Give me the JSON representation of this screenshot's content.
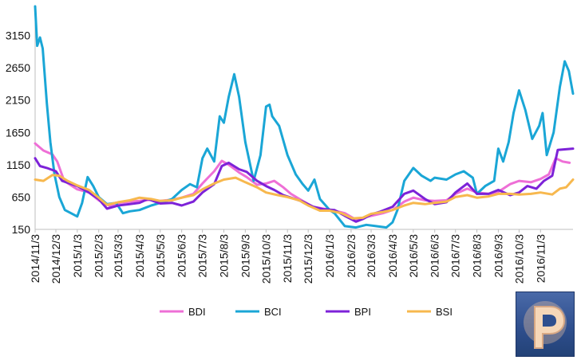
{
  "chart_data": {
    "type": "line",
    "title": "",
    "xlabel": "",
    "ylabel": "",
    "ylim": [
      150,
      3600
    ],
    "yticks": [
      150,
      650,
      1150,
      1650,
      2150,
      2650,
      3150
    ],
    "xlim": [
      "2014-11-03",
      "2016-12-20"
    ],
    "xticks": [
      "2014/11/3",
      "2014/12/3",
      "2015/1/3",
      "2015/2/3",
      "2015/3/3",
      "2015/4/3",
      "2015/5/3",
      "2015/6/3",
      "2015/7/3",
      "2015/8/3",
      "2015/9/3",
      "2015/10/3",
      "2015/11/3",
      "2015/12/3",
      "2016/1/3",
      "2016/2/3",
      "2016/3/3",
      "2016/4/3",
      "2016/5/3",
      "2016/6/3",
      "2016/7/3",
      "2016/8/3",
      "2016/9/3",
      "2016/10/3",
      "2016/11/3"
    ],
    "legend_position": "bottom",
    "grid": false,
    "series": [
      {
        "name": "BDI",
        "color": "#ee6fd6",
        "points": [
          [
            "2014-11-03",
            1480
          ],
          [
            "2014-11-15",
            1370
          ],
          [
            "2014-11-28",
            1310
          ],
          [
            "2014-12-05",
            1200
          ],
          [
            "2014-12-15",
            900
          ],
          [
            "2015-01-03",
            770
          ],
          [
            "2015-01-20",
            720
          ],
          [
            "2015-02-03",
            600
          ],
          [
            "2015-02-18",
            520
          ],
          [
            "2015-03-03",
            560
          ],
          [
            "2015-03-20",
            580
          ],
          [
            "2015-04-03",
            590
          ],
          [
            "2015-04-20",
            610
          ],
          [
            "2015-05-03",
            590
          ],
          [
            "2015-05-20",
            610
          ],
          [
            "2015-06-03",
            640
          ],
          [
            "2015-06-20",
            700
          ],
          [
            "2015-07-03",
            860
          ],
          [
            "2015-07-20",
            1050
          ],
          [
            "2015-07-31",
            1210
          ],
          [
            "2015-08-10",
            1150
          ],
          [
            "2015-08-25",
            1030
          ],
          [
            "2015-09-05",
            960
          ],
          [
            "2015-09-20",
            840
          ],
          [
            "2015-10-03",
            860
          ],
          [
            "2015-10-15",
            900
          ],
          [
            "2015-10-28",
            800
          ],
          [
            "2015-11-08",
            700
          ],
          [
            "2015-11-25",
            590
          ],
          [
            "2015-12-10",
            500
          ],
          [
            "2015-12-25",
            470
          ],
          [
            "2016-01-10",
            440
          ],
          [
            "2016-01-25",
            400
          ],
          [
            "2016-02-10",
            300
          ],
          [
            "2016-02-20",
            330
          ],
          [
            "2016-03-03",
            360
          ],
          [
            "2016-03-20",
            400
          ],
          [
            "2016-04-03",
            450
          ],
          [
            "2016-04-20",
            580
          ],
          [
            "2016-05-03",
            640
          ],
          [
            "2016-05-20",
            600
          ],
          [
            "2016-06-03",
            590
          ],
          [
            "2016-06-20",
            600
          ],
          [
            "2016-07-03",
            700
          ],
          [
            "2016-07-20",
            780
          ],
          [
            "2016-08-03",
            720
          ],
          [
            "2016-08-20",
            700
          ],
          [
            "2016-09-03",
            730
          ],
          [
            "2016-09-20",
            850
          ],
          [
            "2016-10-03",
            900
          ],
          [
            "2016-10-20",
            880
          ],
          [
            "2016-11-03",
            930
          ],
          [
            "2016-11-15",
            1000
          ],
          [
            "2016-11-25",
            1250
          ],
          [
            "2016-12-05",
            1200
          ],
          [
            "2016-12-15",
            1180
          ]
        ]
      },
      {
        "name": "BCI",
        "color": "#1aa6d6",
        "points": [
          [
            "2014-11-03",
            3600
          ],
          [
            "2014-11-06",
            2990
          ],
          [
            "2014-11-10",
            3120
          ],
          [
            "2014-11-14",
            2950
          ],
          [
            "2014-11-20",
            2100
          ],
          [
            "2014-11-25",
            1500
          ],
          [
            "2014-12-01",
            1000
          ],
          [
            "2014-12-08",
            650
          ],
          [
            "2014-12-16",
            450
          ],
          [
            "2014-12-25",
            400
          ],
          [
            "2015-01-03",
            350
          ],
          [
            "2015-01-10",
            560
          ],
          [
            "2015-01-18",
            960
          ],
          [
            "2015-01-26",
            820
          ],
          [
            "2015-02-03",
            650
          ],
          [
            "2015-02-15",
            540
          ],
          [
            "2015-02-28",
            560
          ],
          [
            "2015-03-10",
            400
          ],
          [
            "2015-03-20",
            430
          ],
          [
            "2015-04-03",
            450
          ],
          [
            "2015-04-20",
            520
          ],
          [
            "2015-05-03",
            560
          ],
          [
            "2015-05-20",
            620
          ],
          [
            "2015-06-03",
            760
          ],
          [
            "2015-06-15",
            850
          ],
          [
            "2015-06-25",
            800
          ],
          [
            "2015-07-03",
            1250
          ],
          [
            "2015-07-10",
            1400
          ],
          [
            "2015-07-20",
            1200
          ],
          [
            "2015-07-28",
            1900
          ],
          [
            "2015-08-03",
            1800
          ],
          [
            "2015-08-10",
            2200
          ],
          [
            "2015-08-18",
            2550
          ],
          [
            "2015-08-25",
            2200
          ],
          [
            "2015-09-03",
            1500
          ],
          [
            "2015-09-15",
            900
          ],
          [
            "2015-09-25",
            1300
          ],
          [
            "2015-10-03",
            2050
          ],
          [
            "2015-10-08",
            2080
          ],
          [
            "2015-10-12",
            1900
          ],
          [
            "2015-10-22",
            1750
          ],
          [
            "2015-11-03",
            1300
          ],
          [
            "2015-11-15",
            1000
          ],
          [
            "2015-11-25",
            850
          ],
          [
            "2015-12-03",
            750
          ],
          [
            "2015-12-12",
            920
          ],
          [
            "2015-12-20",
            620
          ],
          [
            "2016-01-03",
            450
          ],
          [
            "2016-01-10",
            400
          ],
          [
            "2016-01-25",
            200
          ],
          [
            "2016-02-10",
            180
          ],
          [
            "2016-02-25",
            220
          ],
          [
            "2016-03-10",
            200
          ],
          [
            "2016-03-25",
            180
          ],
          [
            "2016-04-03",
            260
          ],
          [
            "2016-04-10",
            450
          ],
          [
            "2016-04-20",
            900
          ],
          [
            "2016-05-03",
            1100
          ],
          [
            "2016-05-15",
            980
          ],
          [
            "2016-05-28",
            900
          ],
          [
            "2016-06-03",
            950
          ],
          [
            "2016-06-20",
            920
          ],
          [
            "2016-07-03",
            1000
          ],
          [
            "2016-07-15",
            1050
          ],
          [
            "2016-07-28",
            950
          ],
          [
            "2016-08-03",
            700
          ],
          [
            "2016-08-15",
            820
          ],
          [
            "2016-08-28",
            900
          ],
          [
            "2016-09-03",
            1400
          ],
          [
            "2016-09-10",
            1200
          ],
          [
            "2016-09-18",
            1500
          ],
          [
            "2016-09-25",
            1950
          ],
          [
            "2016-10-03",
            2300
          ],
          [
            "2016-10-12",
            2000
          ],
          [
            "2016-10-22",
            1550
          ],
          [
            "2016-11-01",
            1750
          ],
          [
            "2016-11-06",
            1950
          ],
          [
            "2016-11-12",
            1300
          ],
          [
            "2016-11-22",
            1650
          ],
          [
            "2016-12-01",
            2350
          ],
          [
            "2016-12-08",
            2750
          ],
          [
            "2016-12-14",
            2600
          ],
          [
            "2016-12-20",
            2250
          ]
        ]
      },
      {
        "name": "BPI",
        "color": "#7d22d8",
        "points": [
          [
            "2014-11-03",
            1250
          ],
          [
            "2014-11-10",
            1130
          ],
          [
            "2014-11-20",
            1100
          ],
          [
            "2014-12-03",
            1050
          ],
          [
            "2014-12-12",
            900
          ],
          [
            "2015-01-03",
            820
          ],
          [
            "2015-01-20",
            720
          ],
          [
            "2015-02-03",
            620
          ],
          [
            "2015-02-15",
            470
          ],
          [
            "2015-03-03",
            520
          ],
          [
            "2015-03-20",
            540
          ],
          [
            "2015-04-03",
            560
          ],
          [
            "2015-04-15",
            620
          ],
          [
            "2015-05-03",
            550
          ],
          [
            "2015-05-20",
            560
          ],
          [
            "2015-06-03",
            520
          ],
          [
            "2015-06-20",
            580
          ],
          [
            "2015-07-03",
            720
          ],
          [
            "2015-07-20",
            850
          ],
          [
            "2015-07-31",
            1130
          ],
          [
            "2015-08-10",
            1180
          ],
          [
            "2015-08-25",
            1080
          ],
          [
            "2015-09-05",
            1040
          ],
          [
            "2015-09-20",
            900
          ],
          [
            "2015-10-03",
            820
          ],
          [
            "2015-10-15",
            760
          ],
          [
            "2015-10-28",
            680
          ],
          [
            "2015-11-08",
            640
          ],
          [
            "2015-11-25",
            580
          ],
          [
            "2015-12-10",
            500
          ],
          [
            "2015-12-25",
            460
          ],
          [
            "2016-01-10",
            450
          ],
          [
            "2016-01-25",
            360
          ],
          [
            "2016-02-10",
            270
          ],
          [
            "2016-02-20",
            310
          ],
          [
            "2016-03-03",
            380
          ],
          [
            "2016-03-15",
            420
          ],
          [
            "2016-04-03",
            500
          ],
          [
            "2016-04-20",
            700
          ],
          [
            "2016-05-03",
            750
          ],
          [
            "2016-05-20",
            620
          ],
          [
            "2016-06-03",
            540
          ],
          [
            "2016-06-20",
            570
          ],
          [
            "2016-07-03",
            720
          ],
          [
            "2016-07-20",
            860
          ],
          [
            "2016-08-03",
            700
          ],
          [
            "2016-08-20",
            700
          ],
          [
            "2016-09-03",
            760
          ],
          [
            "2016-09-20",
            680
          ],
          [
            "2016-10-03",
            720
          ],
          [
            "2016-10-15",
            820
          ],
          [
            "2016-10-28",
            780
          ],
          [
            "2016-11-08",
            900
          ],
          [
            "2016-11-20",
            980
          ],
          [
            "2016-11-28",
            1380
          ],
          [
            "2016-12-20",
            1400
          ]
        ]
      },
      {
        "name": "BSI",
        "color": "#f7b84e",
        "points": [
          [
            "2014-11-03",
            920
          ],
          [
            "2014-11-15",
            900
          ],
          [
            "2014-11-28",
            990
          ],
          [
            "2014-12-08",
            980
          ],
          [
            "2014-12-20",
            900
          ],
          [
            "2015-01-03",
            830
          ],
          [
            "2015-01-20",
            760
          ],
          [
            "2015-02-03",
            640
          ],
          [
            "2015-02-15",
            530
          ],
          [
            "2015-03-03",
            570
          ],
          [
            "2015-03-20",
            600
          ],
          [
            "2015-04-03",
            640
          ],
          [
            "2015-04-20",
            620
          ],
          [
            "2015-05-03",
            590
          ],
          [
            "2015-05-20",
            600
          ],
          [
            "2015-06-03",
            640
          ],
          [
            "2015-06-20",
            680
          ],
          [
            "2015-07-03",
            770
          ],
          [
            "2015-07-20",
            860
          ],
          [
            "2015-08-03",
            920
          ],
          [
            "2015-08-20",
            950
          ],
          [
            "2015-09-03",
            880
          ],
          [
            "2015-09-20",
            800
          ],
          [
            "2015-10-03",
            720
          ],
          [
            "2015-10-20",
            680
          ],
          [
            "2015-11-03",
            650
          ],
          [
            "2015-11-20",
            600
          ],
          [
            "2015-12-03",
            520
          ],
          [
            "2015-12-20",
            440
          ],
          [
            "2016-01-03",
            440
          ],
          [
            "2016-01-20",
            400
          ],
          [
            "2016-02-05",
            320
          ],
          [
            "2016-02-20",
            330
          ],
          [
            "2016-03-03",
            390
          ],
          [
            "2016-03-20",
            420
          ],
          [
            "2016-04-03",
            450
          ],
          [
            "2016-04-20",
            520
          ],
          [
            "2016-05-03",
            560
          ],
          [
            "2016-05-20",
            540
          ],
          [
            "2016-06-03",
            560
          ],
          [
            "2016-06-20",
            580
          ],
          [
            "2016-07-03",
            650
          ],
          [
            "2016-07-20",
            680
          ],
          [
            "2016-08-03",
            640
          ],
          [
            "2016-08-20",
            660
          ],
          [
            "2016-09-03",
            700
          ],
          [
            "2016-09-20",
            700
          ],
          [
            "2016-10-03",
            690
          ],
          [
            "2016-10-20",
            700
          ],
          [
            "2016-11-03",
            720
          ],
          [
            "2016-11-20",
            690
          ],
          [
            "2016-12-01",
            780
          ],
          [
            "2016-12-10",
            800
          ],
          [
            "2016-12-20",
            920
          ]
        ]
      }
    ]
  }
}
